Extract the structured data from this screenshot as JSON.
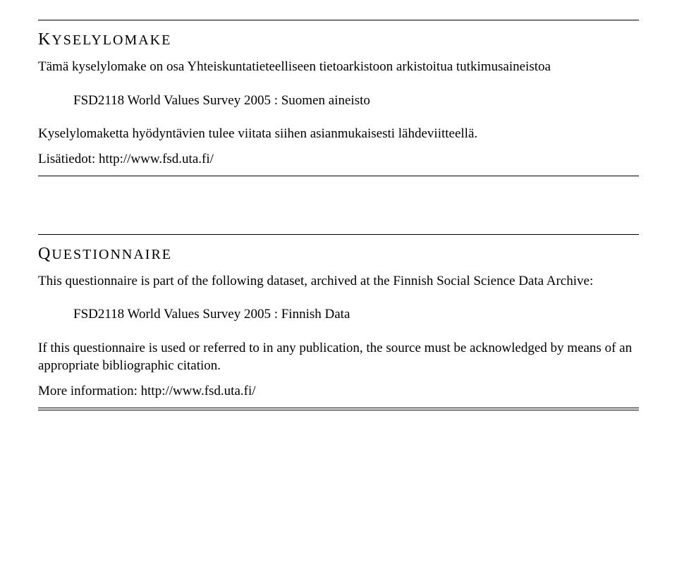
{
  "top": {
    "heading_first": "K",
    "heading_rest": "YSELYLOMAKE",
    "intro": "Tämä kyselylomake on osa Yhteiskuntatieteelliseen tietoarkistoon arkistoitua tutkimusaineistoa",
    "dataset": "FSD2118 World Values Survey 2005 : Suomen aineisto",
    "usage": "Kyselylomaketta hyödyntävien tulee viitata siihen asianmukaisesti lähdeviitteellä.",
    "moreinfo": "Lisätiedot: http://www.fsd.uta.fi/"
  },
  "bottom": {
    "heading_first": "Q",
    "heading_rest": "UESTIONNAIRE",
    "intro": "This questionnaire is part of the following dataset, archived at the Finnish Social Science Data Archive:",
    "dataset": "FSD2118 World Values Survey 2005 : Finnish Data",
    "usage": "If this questionnaire is used or referred to in any publication, the source must be acknowledged by means of an appropriate bibliographic citation.",
    "moreinfo": "More information: http://www.fsd.uta.fi/"
  }
}
